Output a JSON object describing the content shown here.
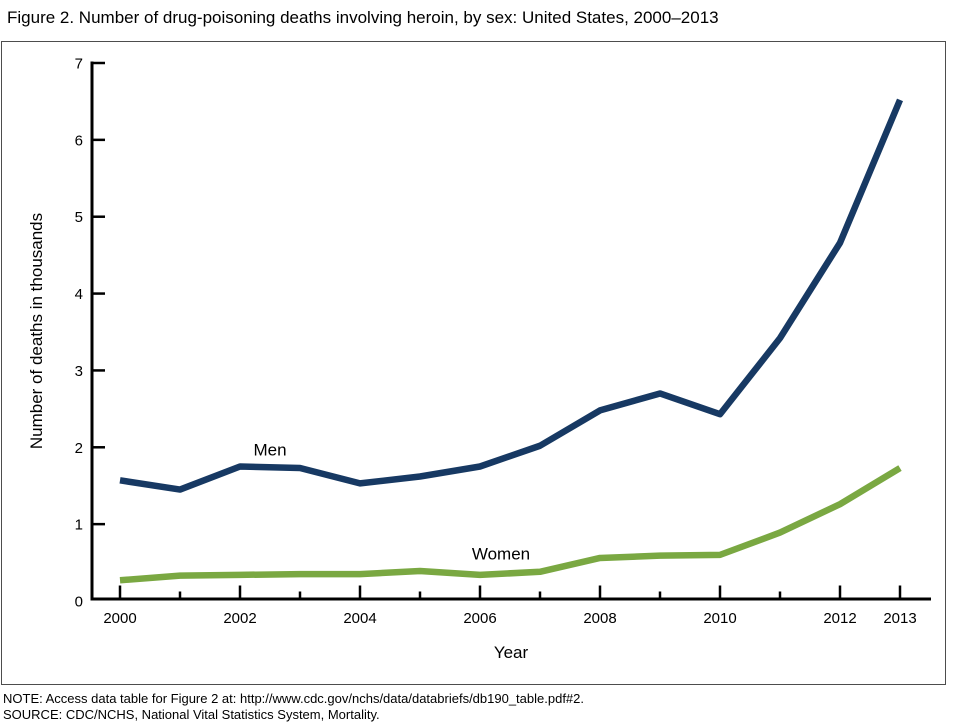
{
  "title": "Figure 2. Number of drug-poisoning deaths involving heroin, by sex: United States, 2000–2013",
  "footer": {
    "note": "NOTE: Access data table for Figure 2 at: http://www.cdc.gov/nchs/data/databriefs/db190_table.pdf#2.",
    "source": "SOURCE: CDC/NCHS, National Vital Statistics System, Mortality."
  },
  "colors": {
    "men_line": "#173963",
    "women_line": "#7aa842",
    "axis": "#000000",
    "border": "#4d4d4d"
  },
  "chart_data": {
    "type": "line",
    "title": "Figure 2. Number of drug-poisoning deaths involving heroin, by sex: United States, 2000–2013",
    "xlabel": "Year",
    "ylabel": "Number of deaths in thousands",
    "x": [
      2000,
      2001,
      2002,
      2003,
      2004,
      2005,
      2006,
      2007,
      2008,
      2009,
      2010,
      2011,
      2012,
      2013
    ],
    "x_tick_labels": [
      2000,
      2002,
      2004,
      2006,
      2008,
      2010,
      2012,
      2013
    ],
    "x_minor_ticks": [
      2001,
      2003,
      2005,
      2007,
      2009,
      2011
    ],
    "y_ticks": [
      0,
      1,
      2,
      3,
      4,
      5,
      6,
      7
    ],
    "ylim": [
      0,
      7
    ],
    "xlim": [
      2000,
      2013
    ],
    "grid": false,
    "legend": "inline-labels",
    "series": [
      {
        "name": "Men",
        "color": "#173963",
        "values": [
          1.57,
          1.45,
          1.75,
          1.73,
          1.53,
          1.62,
          1.75,
          2.02,
          2.48,
          2.7,
          2.43,
          3.42,
          4.66,
          6.52
        ],
        "label_pos": {
          "x": 2002.5,
          "y": 1.97
        }
      },
      {
        "name": "Women",
        "color": "#7aa842",
        "values": [
          0.27,
          0.33,
          0.34,
          0.35,
          0.35,
          0.39,
          0.34,
          0.38,
          0.56,
          0.59,
          0.6,
          0.89,
          1.26,
          1.73
        ],
        "label_pos": {
          "x": 2006.35,
          "y": 0.62
        }
      }
    ]
  }
}
